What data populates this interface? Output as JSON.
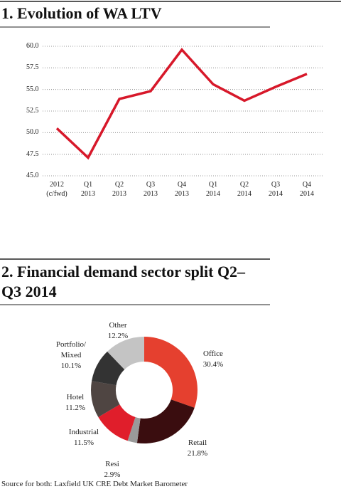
{
  "chart_data": [
    {
      "type": "line",
      "title": "1. Evolution of WA LTV",
      "categories": [
        "2012\n(c/fwd)",
        "Q1\n2013",
        "Q2\n2013",
        "Q3\n2013",
        "Q4\n2013",
        "Q1\n2014",
        "Q2\n2014",
        "Q3\n2014",
        "Q4\n2014"
      ],
      "values": [
        50.5,
        47.1,
        53.9,
        54.8,
        59.6,
        55.6,
        53.7,
        55.3,
        56.8
      ],
      "color": "#d7182a",
      "ylim": [
        45,
        60
      ],
      "yticks": [
        {
          "value": 45,
          "label": "45.0"
        },
        47.5,
        {
          "value": 50,
          "label": "50.0"
        },
        52.5,
        {
          "value": 55,
          "label": "55.0"
        },
        57.5,
        {
          "value": 60,
          "label": "60.0"
        }
      ],
      "grid": true
    },
    {
      "type": "pie",
      "title": "2. Financial demand sector split Q2–Q3 2014",
      "categories": [
        "Office",
        "Retail",
        "Resi",
        "Industrial",
        "Hotel",
        "Portfolio/\nMixed",
        "Other"
      ],
      "values": [
        30.4,
        21.8,
        2.9,
        11.5,
        11.2,
        10.1,
        12.2
      ],
      "value_labels": [
        "30.4%",
        "21.8%",
        "2.9%",
        "11.5%",
        "11.2%",
        "10.1%",
        "12.2%"
      ],
      "colors": [
        "#e5402f",
        "#3a0d0f",
        "#9a9a9a",
        "#e01e2b",
        "#4f4542",
        "#333333",
        "#c4c4c4"
      ],
      "donut": true
    }
  ],
  "source": "Source for both: Laxfield UK CRE Debt Market Barometer"
}
